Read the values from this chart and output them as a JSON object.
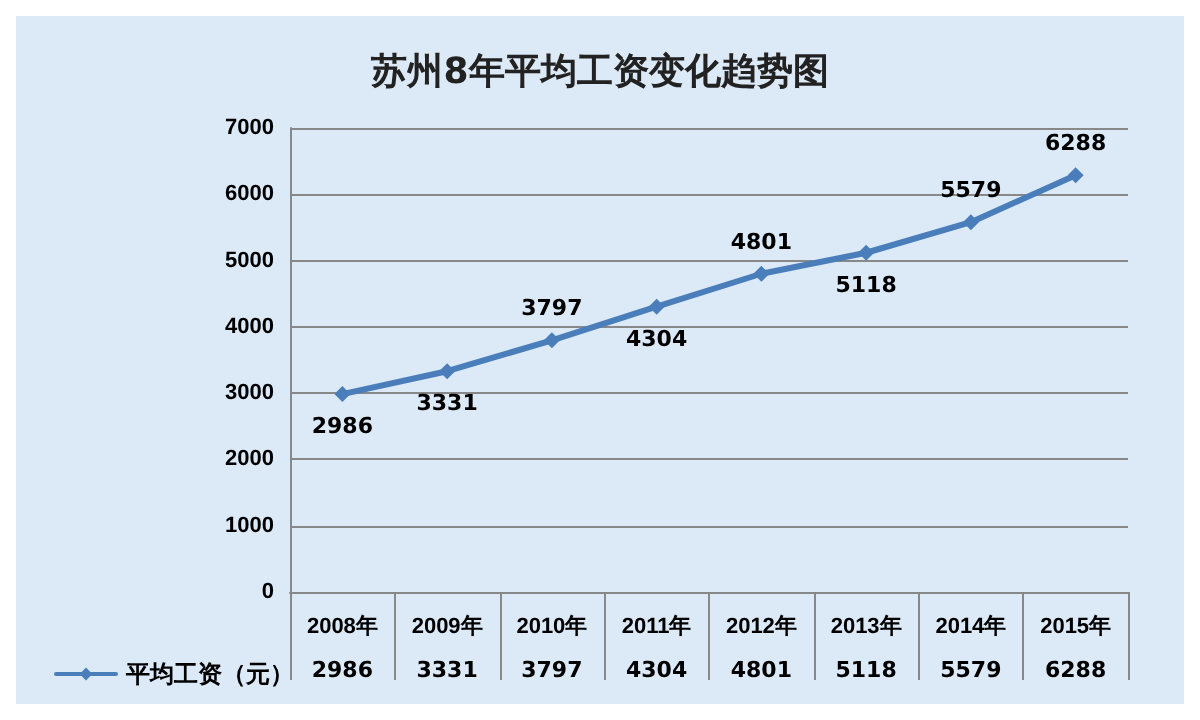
{
  "chart_data": {
    "type": "line",
    "title": "苏州8年平均工资变化趋势图",
    "categories": [
      "2008年",
      "2009年",
      "2010年",
      "2011年",
      "2012年",
      "2013年",
      "2014年",
      "2015年"
    ],
    "series": [
      {
        "name": "平均工资（元）",
        "color": "#4a7ebb",
        "values": [
          2986,
          3331,
          3797,
          4304,
          4801,
          5118,
          5579,
          6288
        ],
        "value_labels": [
          "2986",
          "3331",
          "3797",
          "4304",
          "4801",
          "5118",
          "5579",
          "6288"
        ]
      }
    ],
    "annotations": [
      "2986",
      "3331",
      "3797",
      "4304",
      "4801",
      "5118",
      "5579",
      "6288"
    ],
    "ylim": [
      0,
      7000
    ],
    "yticks": [
      0,
      1000,
      2000,
      3000,
      4000,
      5000,
      6000,
      7000
    ],
    "grid": "y",
    "legend": "bottom left",
    "marker": "diamond",
    "line_style": "solid",
    "data_labels": true
  }
}
